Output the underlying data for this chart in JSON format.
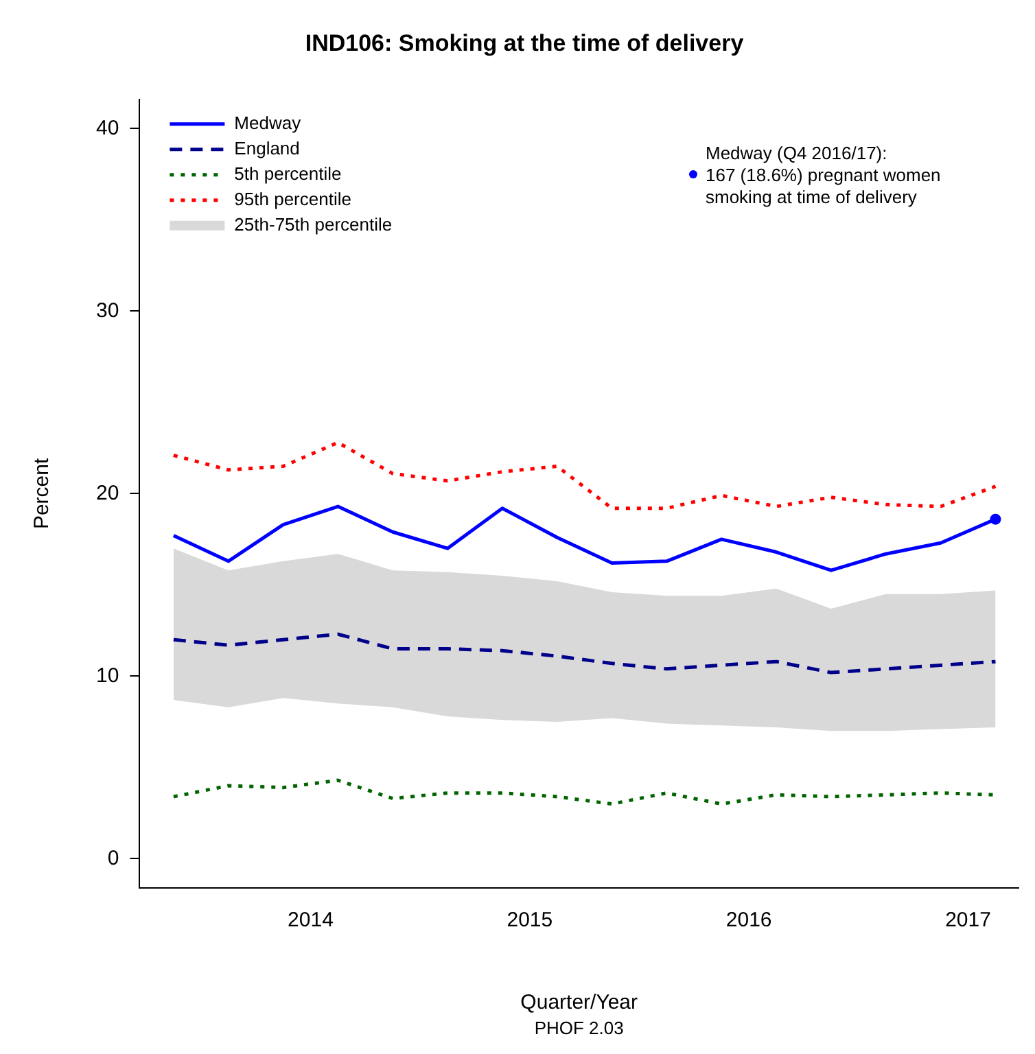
{
  "chart_data": {
    "type": "line",
    "title": "IND106: Smoking at the time of delivery",
    "xlabel": "Quarter/Year",
    "ylabel": "Percent",
    "annotations": [
      "Medway (Q4 2016/17):\n167 (18.6%) pregnant women\nsmoking at time of delivery",
      "PHOF 2.03"
    ],
    "x": [
      2013.375,
      2013.625,
      2013.875,
      2014.125,
      2014.375,
      2014.625,
      2014.875,
      2015.125,
      2015.375,
      2015.625,
      2015.875,
      2016.125,
      2016.375,
      2016.625,
      2016.875,
      2017.125
    ],
    "series": [
      {
        "name": "Medway",
        "color": "#0000ff",
        "line_style": "solid",
        "values": [
          17.7,
          16.3,
          18.3,
          19.3,
          17.9,
          17.0,
          19.2,
          17.6,
          16.2,
          16.3,
          17.5,
          16.8,
          15.8,
          16.7,
          17.3,
          18.6
        ]
      },
      {
        "name": "England",
        "color": "#00008b",
        "line_style": "dashed",
        "values": [
          12.0,
          11.7,
          12.0,
          12.3,
          11.5,
          11.5,
          11.4,
          11.1,
          10.7,
          10.4,
          10.6,
          10.8,
          10.2,
          10.4,
          10.6,
          10.8
        ]
      },
      {
        "name": "5th percentile",
        "color": "#006400",
        "line_style": "dotted",
        "values": [
          3.4,
          4.0,
          3.9,
          4.3,
          3.3,
          3.6,
          3.6,
          3.4,
          3.0,
          3.6,
          3.0,
          3.5,
          3.4,
          3.5,
          3.6,
          3.5
        ]
      },
      {
        "name": "95th percentile",
        "color": "#ff0000",
        "line_style": "dotted",
        "values": [
          22.1,
          21.3,
          21.5,
          22.8,
          21.1,
          20.7,
          21.2,
          21.5,
          19.2,
          19.2,
          19.9,
          19.3,
          19.8,
          19.4,
          19.3,
          20.4
        ]
      },
      {
        "name": "25th-75th percentile",
        "type": "area",
        "color": "#d9d9d9",
        "values": [
          null,
          null,
          null,
          null,
          null,
          null,
          null,
          null,
          null,
          null,
          null,
          null,
          null,
          null,
          null,
          null
        ],
        "lower": [
          8.7,
          8.3,
          8.8,
          8.5,
          8.3,
          7.8,
          7.6,
          7.5,
          7.7,
          7.4,
          7.3,
          7.2,
          7.0,
          7.0,
          7.1,
          7.2
        ],
        "upper": [
          17.0,
          15.8,
          16.3,
          16.7,
          15.8,
          15.7,
          15.5,
          15.2,
          14.6,
          14.4,
          14.4,
          14.8,
          13.7,
          14.5,
          14.5,
          14.7
        ]
      }
    ],
    "xlim": [
      2013.22,
      2017.23
    ],
    "xticks": [
      2014,
      2015,
      2016,
      2017
    ],
    "ylim": [
      -1.6,
      41.6
    ],
    "yticks": [
      0,
      10,
      20,
      30,
      40
    ],
    "grid": false,
    "legend": "top left"
  }
}
